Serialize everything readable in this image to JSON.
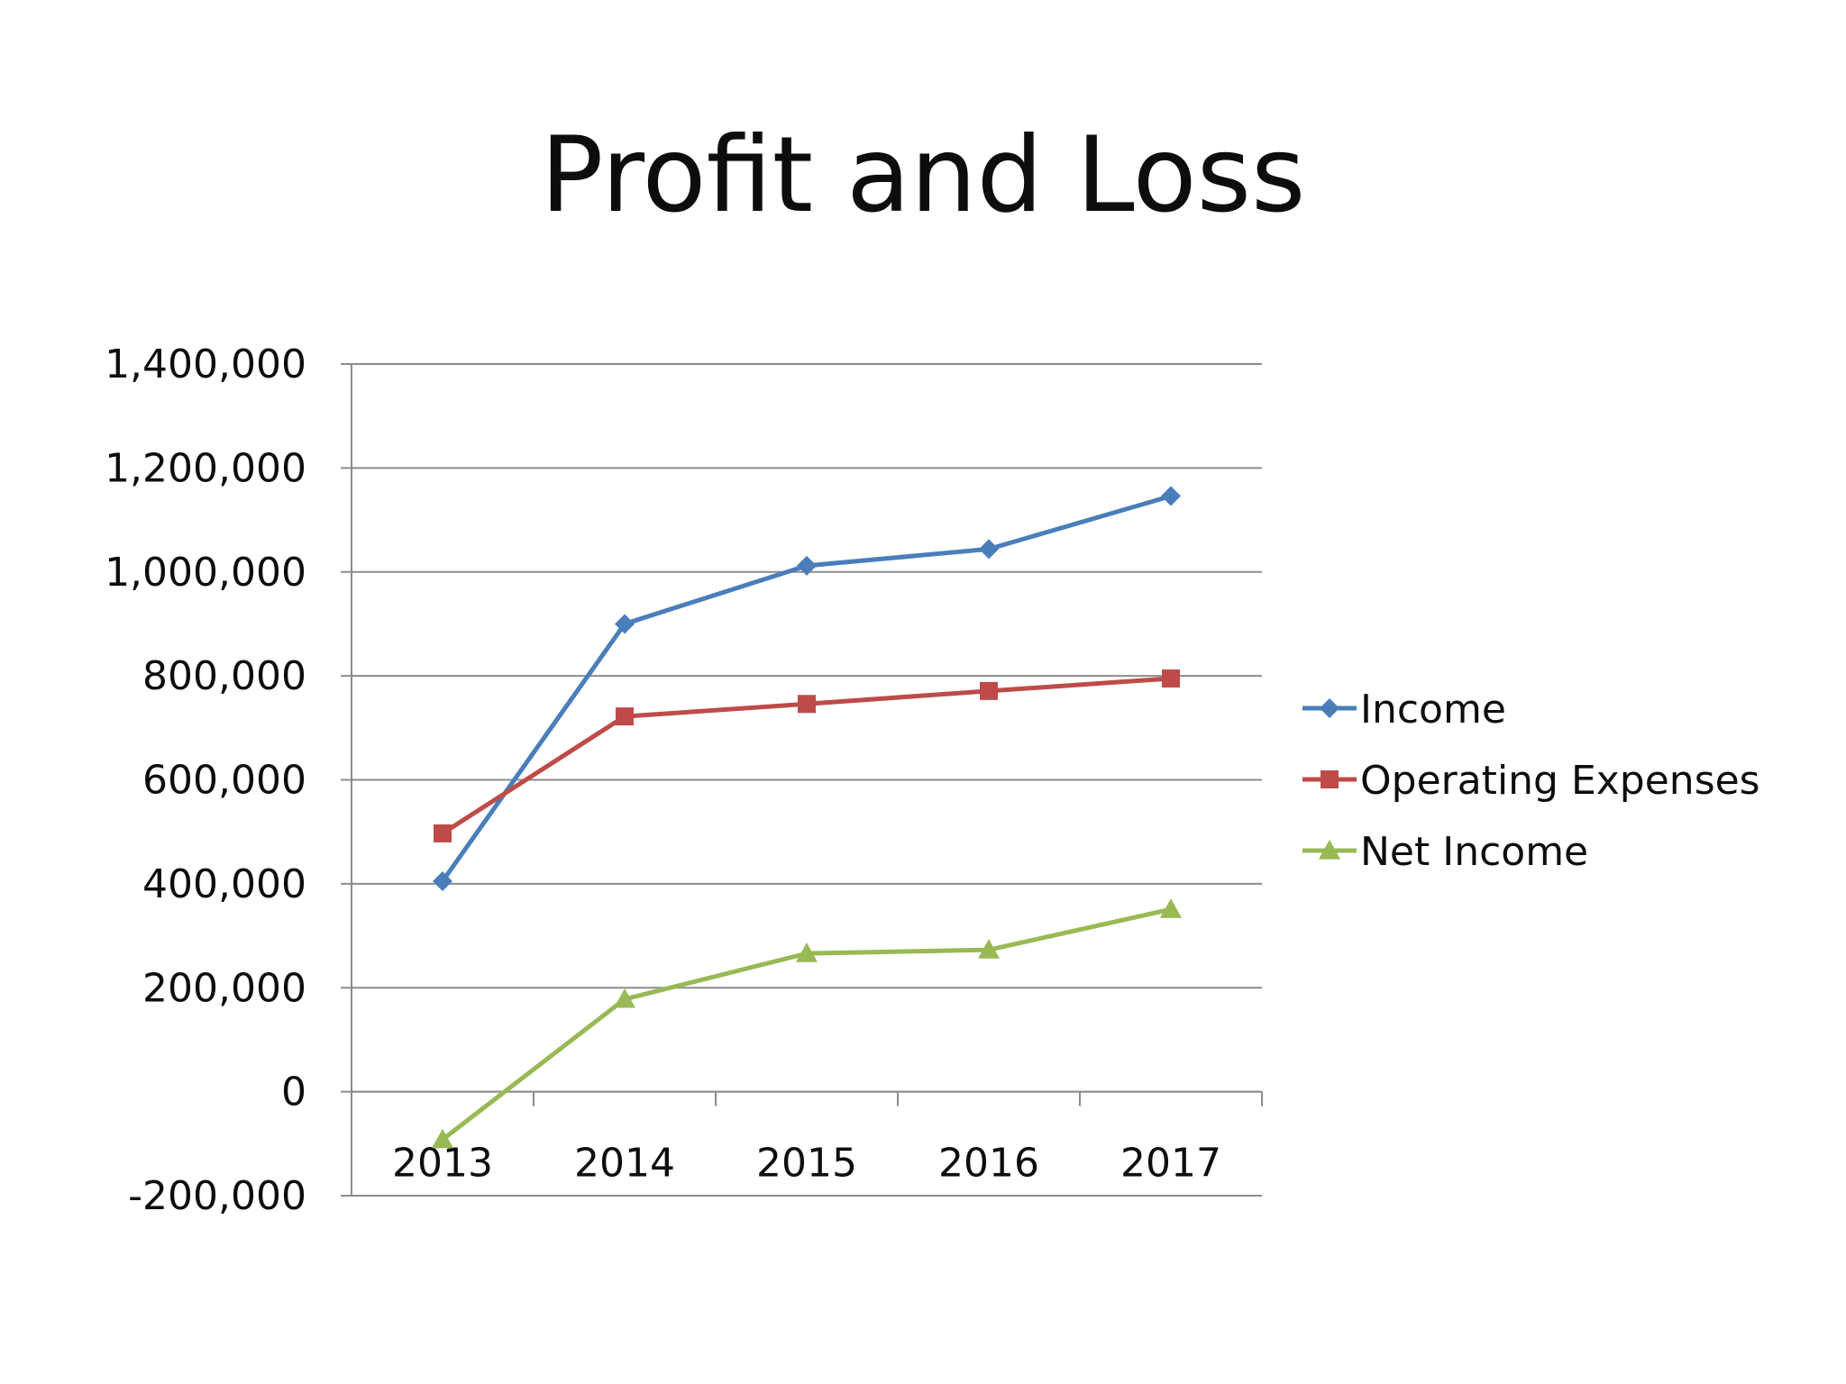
{
  "chart_data": {
    "type": "line",
    "title": "Profit and Loss",
    "xlabel": "",
    "ylabel": "",
    "categories": [
      "2013",
      "2014",
      "2015",
      "2016",
      "2017"
    ],
    "y_ticks": [
      "1,400,000",
      "1,200,000",
      "1,000,000",
      "800,000",
      "600,000",
      "400,000",
      "200,000",
      "0",
      "-200,000"
    ],
    "ylim": [
      -200000,
      1400000
    ],
    "grid": true,
    "legend_position": "right",
    "series": [
      {
        "name": "Income",
        "values": [
          405000,
          900000,
          1012000,
          1044000,
          1146000
        ],
        "color": "#4a7ebb",
        "marker": "diamond"
      },
      {
        "name": "Operating Expenses",
        "values": [
          497000,
          722000,
          746000,
          771000,
          795000
        ],
        "color": "#be4b48",
        "marker": "square"
      },
      {
        "name": "Net Income",
        "values": [
          -92000,
          178000,
          266000,
          273000,
          351000
        ],
        "color": "#98b954",
        "marker": "triangle"
      }
    ]
  }
}
